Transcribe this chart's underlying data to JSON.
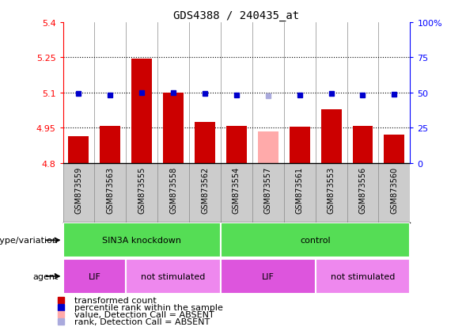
{
  "title": "GDS4388 / 240435_at",
  "samples": [
    "GSM873559",
    "GSM873563",
    "GSM873555",
    "GSM873558",
    "GSM873562",
    "GSM873554",
    "GSM873557",
    "GSM873561",
    "GSM873553",
    "GSM873556",
    "GSM873560"
  ],
  "bar_values": [
    4.915,
    4.96,
    5.245,
    5.1,
    4.975,
    4.96,
    4.935,
    4.955,
    5.03,
    4.96,
    4.92
  ],
  "bar_colors": [
    "#cc0000",
    "#cc0000",
    "#cc0000",
    "#cc0000",
    "#cc0000",
    "#cc0000",
    "#ffaaaa",
    "#cc0000",
    "#cc0000",
    "#cc0000",
    "#cc0000"
  ],
  "rank_y_left": [
    5.095,
    5.09,
    5.1,
    5.1,
    5.095,
    5.09,
    5.085,
    5.09,
    5.095,
    5.09,
    5.092
  ],
  "rank_colors": [
    "#0000cc",
    "#0000cc",
    "#0000cc",
    "#0000cc",
    "#0000cc",
    "#0000cc",
    "#aaaadd",
    "#0000cc",
    "#0000cc",
    "#0000cc",
    "#0000cc"
  ],
  "ymin": 4.8,
  "ymax": 5.4,
  "yticks_left": [
    4.8,
    4.95,
    5.1,
    5.25,
    5.4
  ],
  "ytick_labels_left": [
    "4.8",
    "4.95",
    "5.1",
    "5.25",
    "5.4"
  ],
  "yticks_right_pct": [
    0,
    25,
    50,
    75,
    100
  ],
  "ytick_labels_right": [
    "0",
    "25",
    "50",
    "75",
    "100%"
  ],
  "hlines": [
    4.95,
    5.1,
    5.25
  ],
  "groups": [
    {
      "label": "SIN3A knockdown",
      "start": 0,
      "end": 5,
      "color": "#66dd55"
    },
    {
      "label": "control",
      "start": 5,
      "end": 11,
      "color": "#66dd55"
    }
  ],
  "agents": [
    {
      "label": "LIF",
      "start": 0,
      "end": 2,
      "color": "#dd66dd"
    },
    {
      "label": "not stimulated",
      "start": 2,
      "end": 5,
      "color": "#ee88ee"
    },
    {
      "label": "LIF",
      "start": 5,
      "end": 8,
      "color": "#dd66dd"
    },
    {
      "label": "not stimulated",
      "start": 8,
      "end": 11,
      "color": "#ee88ee"
    }
  ],
  "bar_base": 4.8,
  "bar_width": 0.65,
  "legend_items": [
    {
      "color": "#cc0000",
      "label": "transformed count"
    },
    {
      "color": "#0000cc",
      "label": "percentile rank within the sample"
    },
    {
      "color": "#ffaaaa",
      "label": "value, Detection Call = ABSENT"
    },
    {
      "color": "#aaaadd",
      "label": "rank, Detection Call = ABSENT"
    }
  ],
  "plot_bg": "#dddddd",
  "green_color": "#55dd55",
  "lif_color": "#dd55dd",
  "not_stim_color": "#ee99ee"
}
